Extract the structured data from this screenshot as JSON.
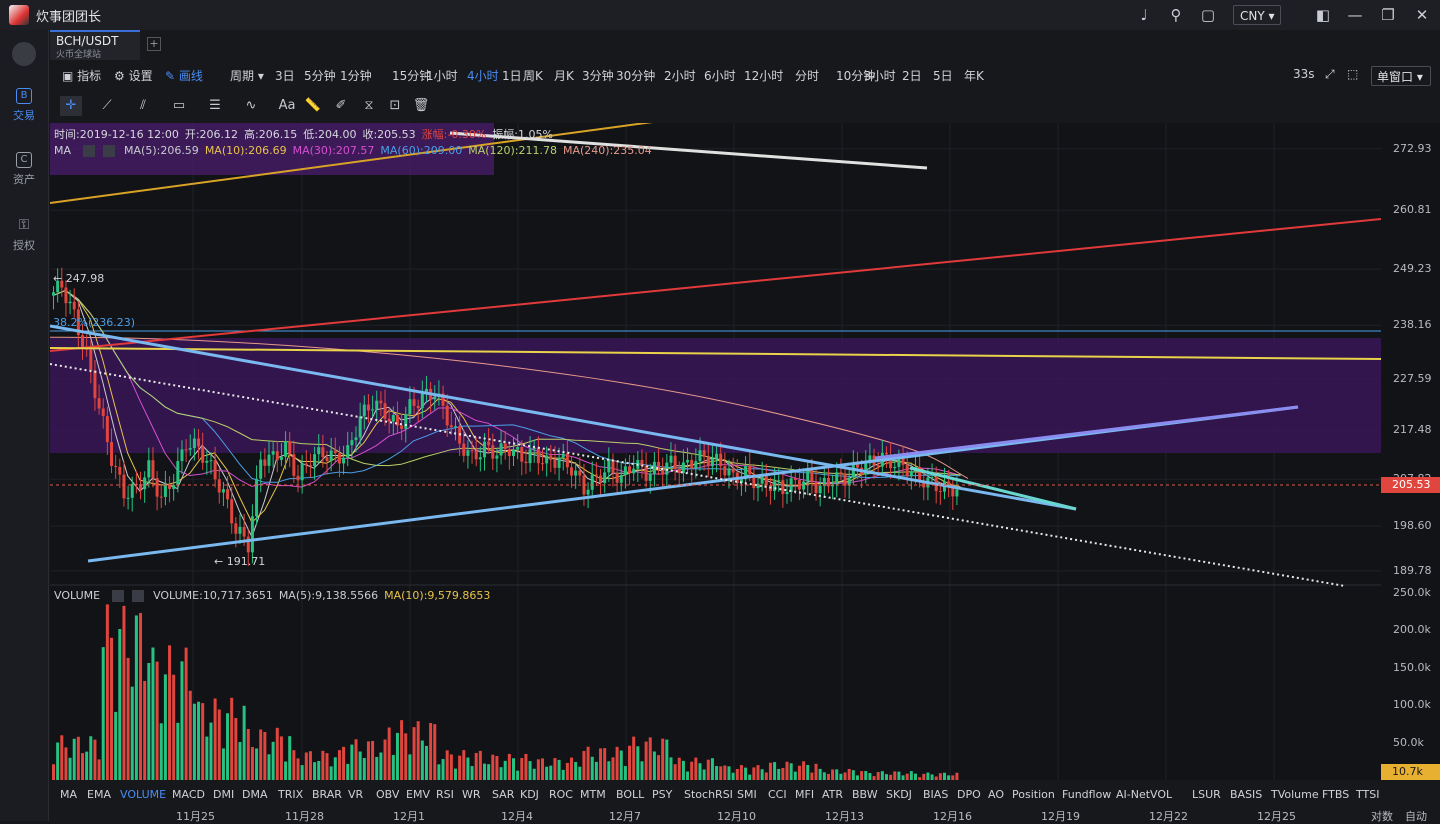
{
  "app": {
    "title": "炊事团团长",
    "currency": "CNY"
  },
  "nav": [
    {
      "label": "交易",
      "icon": "trade-icon"
    },
    {
      "label": "资产",
      "icon": "wallet-icon"
    },
    {
      "label": "授权",
      "icon": "key-icon"
    }
  ],
  "symbol": {
    "pair": "BCH/USDT",
    "exchange": "火币全球站"
  },
  "toolbar": {
    "indicators": "指标",
    "settings": "设置",
    "draw": "画线",
    "period": "周期",
    "intervals": [
      "3日",
      "5分钟",
      "1分钟",
      "15分钟",
      "1小时",
      "4小时",
      "1日",
      "周K",
      "月K",
      "3分钟",
      "30分钟",
      "2小时",
      "6小时",
      "12小时",
      "分时",
      "10分钟",
      "3小时",
      "2日",
      "5日",
      "年K"
    ],
    "active_interval": "4小时",
    "countdown": "33s",
    "window_mode": "单窗口"
  },
  "info": {
    "ohlc": [
      "时间:2019-12-16 12:00",
      "开:206.12",
      "高:206.15",
      "低:204.00",
      "收:205.53",
      "涨幅:-0.30%",
      "振幅:1.05%"
    ],
    "ma_label": "MA",
    "ma": [
      {
        "text": "MA(5):206.59",
        "color": "#c9cbd0"
      },
      {
        "text": "MA(10):206.69",
        "color": "#e8c34a"
      },
      {
        "text": "MA(30):207.57",
        "color": "#d64fd0"
      },
      {
        "text": "MA(60):209.00",
        "color": "#4a9fe8"
      },
      {
        "text": "MA(120):211.78",
        "color": "#b8d06a"
      },
      {
        "text": "MA(240):235.04",
        "color": "#e89a8a"
      }
    ],
    "volume_label": "VOLUME",
    "volume": [
      {
        "text": "VOLUME:10,717.3651",
        "color": "#c9cbd0"
      },
      {
        "text": "MA(5):9,138.5566",
        "color": "#c9cbd0"
      },
      {
        "text": "MA(10):9,579.8653",
        "color": "#e8c34a"
      }
    ]
  },
  "price_axis": [
    "272.93",
    "260.81",
    "249.23",
    "238.16",
    "227.59",
    "217.48",
    "207.82",
    "198.60",
    "189.78"
  ],
  "current_price": "205.53",
  "volume_axis": [
    "250.0k",
    "200.0k",
    "150.0k",
    "100.0k",
    "50.0k"
  ],
  "current_volume": "10.7k",
  "annotations": {
    "high": "← 247.98",
    "low": "← 191.71",
    "fib": "38.2%(236.23)"
  },
  "indicator_tabs": [
    "MA",
    "EMA",
    "VOLUME",
    "MACD",
    "DMI",
    "DMA",
    "TRIX",
    "BRAR",
    "VR",
    "OBV",
    "EMV",
    "RSI",
    "WR",
    "SAR",
    "KDJ",
    "ROC",
    "MTM",
    "BOLL",
    "PSY",
    "StochRSI",
    "SMI",
    "CCI",
    "MFI",
    "ATR",
    "BBW",
    "SKDJ",
    "BIAS",
    "DPO",
    "AO",
    "Position",
    "Fundflow",
    "AI-NetVOL",
    "LSUR",
    "BASIS",
    "TVolume",
    "FTBS",
    "TTSI"
  ],
  "active_indicator": "VOLUME",
  "dates": [
    "11月25",
    "11月28",
    "12月1",
    "12月4",
    "12月7",
    "12月10",
    "12月13",
    "12月16",
    "12月19",
    "12月22",
    "12月25"
  ],
  "footer": {
    "left": "对数",
    "right": "自动"
  },
  "chart_data": {
    "type": "candlestick",
    "symbol": "BCH/USDT",
    "interval": "4小时",
    "x_range": [
      "11月23",
      "12月26"
    ],
    "y_range": [
      187,
      278
    ],
    "price_ticks": [
      272.93,
      260.81,
      249.23,
      238.16,
      227.59,
      217.48,
      207.82,
      198.6,
      189.78
    ],
    "volume_ticks": [
      0,
      50000,
      100000,
      150000,
      200000,
      250000
    ],
    "high": 247.98,
    "low": 191.71,
    "last_close": 205.53,
    "last_volume": 10717.3651,
    "fib_level": 236.23,
    "close_path": [
      244,
      246,
      240,
      232,
      222,
      212,
      205,
      206,
      210,
      204,
      208,
      215,
      214,
      210,
      205,
      198,
      195,
      212,
      212,
      214,
      208,
      212,
      213,
      212,
      213,
      220,
      223,
      221,
      218,
      222,
      224,
      225,
      220,
      215,
      212,
      214,
      213,
      214,
      212,
      213,
      211,
      212,
      210,
      206,
      208,
      210,
      208,
      211,
      209,
      210,
      211,
      210,
      212,
      212,
      211,
      208,
      209,
      207,
      207,
      206,
      207,
      208,
      206,
      208,
      208,
      210,
      211,
      212,
      211,
      210,
      208,
      207,
      206,
      206
    ],
    "volume_peaks": [
      60000,
      235000,
      180000,
      110000,
      70000,
      40000,
      55000,
      80000,
      40000,
      35000,
      30000,
      45000,
      58000,
      30000,
      20000,
      25000,
      15000,
      12000,
      10000,
      10717
    ]
  }
}
